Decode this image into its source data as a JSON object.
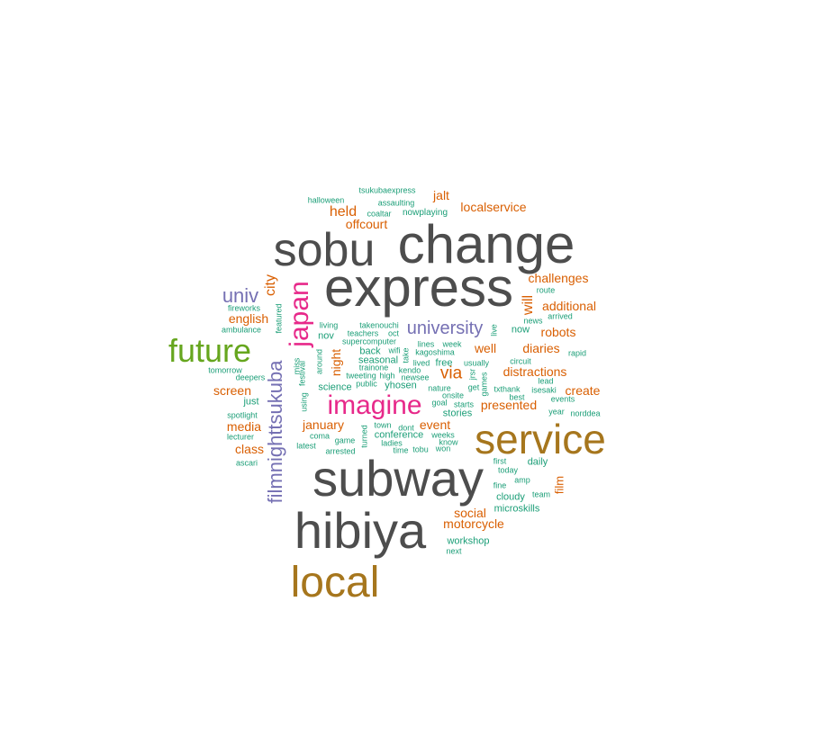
{
  "colors": {
    "c1": "#4d4d4d",
    "c2": "#a6761d",
    "c3": "#e7298a",
    "c4": "#66a61e",
    "c5": "#7570b3",
    "c6": "#d95f02",
    "c7": "#1b9e77"
  },
  "words": [
    {
      "text": "change",
      "rank": 1,
      "color": "c1"
    },
    {
      "text": "express",
      "rank": 1,
      "color": "c1"
    },
    {
      "text": "sobu",
      "rank": 1,
      "color": "c1"
    },
    {
      "text": "subway",
      "rank": 1,
      "color": "c1"
    },
    {
      "text": "hibiya",
      "rank": 1,
      "color": "c1"
    },
    {
      "text": "service",
      "rank": 2,
      "color": "c2"
    },
    {
      "text": "local",
      "rank": 2,
      "color": "c2"
    },
    {
      "text": "imagine",
      "rank": 3,
      "color": "c3"
    },
    {
      "text": "japan",
      "rank": 3,
      "color": "c3"
    },
    {
      "text": "future",
      "rank": 3,
      "color": "c4"
    },
    {
      "text": "filmnighttsukuba",
      "rank": 4,
      "color": "c5"
    },
    {
      "text": "univ",
      "rank": 4,
      "color": "c5"
    },
    {
      "text": "university",
      "rank": 4,
      "color": "c5"
    },
    {
      "text": "via",
      "rank": 5,
      "color": "c6"
    },
    {
      "text": "held",
      "rank": 5,
      "color": "c6"
    },
    {
      "text": "city",
      "rank": 5,
      "color": "c6"
    },
    {
      "text": "will",
      "rank": 5,
      "color": "c6"
    },
    {
      "text": "jalt",
      "rank": 6,
      "color": "c6"
    },
    {
      "text": "localservice",
      "rank": 6,
      "color": "c6"
    },
    {
      "text": "offcourt",
      "rank": 6,
      "color": "c6"
    },
    {
      "text": "challenges",
      "rank": 6,
      "color": "c6"
    },
    {
      "text": "additional",
      "rank": 6,
      "color": "c6"
    },
    {
      "text": "english",
      "rank": 6,
      "color": "c6"
    },
    {
      "text": "robots",
      "rank": 6,
      "color": "c6"
    },
    {
      "text": "well",
      "rank": 6,
      "color": "c6"
    },
    {
      "text": "diaries",
      "rank": 6,
      "color": "c6"
    },
    {
      "text": "distractions",
      "rank": 6,
      "color": "c6"
    },
    {
      "text": "create",
      "rank": 6,
      "color": "c6"
    },
    {
      "text": "screen",
      "rank": 6,
      "color": "c6"
    },
    {
      "text": "media",
      "rank": 6,
      "color": "c6"
    },
    {
      "text": "january",
      "rank": 6,
      "color": "c6"
    },
    {
      "text": "event",
      "rank": 6,
      "color": "c6"
    },
    {
      "text": "presented",
      "rank": 6,
      "color": "c6"
    },
    {
      "text": "class",
      "rank": 6,
      "color": "c6"
    },
    {
      "text": "social",
      "rank": 6,
      "color": "c6"
    },
    {
      "text": "motorcycle",
      "rank": 6,
      "color": "c6"
    },
    {
      "text": "night",
      "rank": 6,
      "color": "c6"
    },
    {
      "text": "film",
      "rank": 6,
      "color": "c6"
    },
    {
      "text": "tsukubaexpress",
      "rank": 8,
      "color": "c7"
    },
    {
      "text": "halloween",
      "rank": 8,
      "color": "c7"
    },
    {
      "text": "assaulting",
      "rank": 8,
      "color": "c7"
    },
    {
      "text": "coaltar",
      "rank": 8,
      "color": "c7"
    },
    {
      "text": "nowplaying",
      "rank": 7,
      "color": "c7"
    },
    {
      "text": "route",
      "rank": 8,
      "color": "c7"
    },
    {
      "text": "fireworks",
      "rank": 8,
      "color": "c7"
    },
    {
      "text": "featured",
      "rank": 8,
      "color": "c7"
    },
    {
      "text": "ambulance",
      "rank": 8,
      "color": "c7"
    },
    {
      "text": "living",
      "rank": 8,
      "color": "c7"
    },
    {
      "text": "takenouchi",
      "rank": 8,
      "color": "c7"
    },
    {
      "text": "news",
      "rank": 8,
      "color": "c7"
    },
    {
      "text": "arrived",
      "rank": 8,
      "color": "c7"
    },
    {
      "text": "live",
      "rank": 8,
      "color": "c7"
    },
    {
      "text": "now",
      "rank": 7,
      "color": "c7"
    },
    {
      "text": "nov",
      "rank": 7,
      "color": "c7"
    },
    {
      "text": "teachers",
      "rank": 8,
      "color": "c7"
    },
    {
      "text": "oct",
      "rank": 8,
      "color": "c7"
    },
    {
      "text": "supercomputer",
      "rank": 8,
      "color": "c7"
    },
    {
      "text": "lines",
      "rank": 8,
      "color": "c7"
    },
    {
      "text": "week",
      "rank": 8,
      "color": "c7"
    },
    {
      "text": "back",
      "rank": 7,
      "color": "c7"
    },
    {
      "text": "wifi",
      "rank": 8,
      "color": "c7"
    },
    {
      "text": "kagoshima",
      "rank": 8,
      "color": "c7"
    },
    {
      "text": "rapid",
      "rank": 8,
      "color": "c7"
    },
    {
      "text": "miss",
      "rank": 8,
      "color": "c7"
    },
    {
      "text": "around",
      "rank": 8,
      "color": "c7"
    },
    {
      "text": "seasonal",
      "rank": 7,
      "color": "c7"
    },
    {
      "text": "take",
      "rank": 8,
      "color": "c7"
    },
    {
      "text": "lived",
      "rank": 8,
      "color": "c7"
    },
    {
      "text": "free",
      "rank": 7,
      "color": "c7"
    },
    {
      "text": "usually",
      "rank": 8,
      "color": "c7"
    },
    {
      "text": "circuit",
      "rank": 8,
      "color": "c7"
    },
    {
      "text": "tomorrow",
      "rank": 8,
      "color": "c7"
    },
    {
      "text": "deepers",
      "rank": 8,
      "color": "c7"
    },
    {
      "text": "trainone",
      "rank": 8,
      "color": "c7"
    },
    {
      "text": "kendo",
      "rank": 8,
      "color": "c7"
    },
    {
      "text": "tweeting",
      "rank": 8,
      "color": "c7"
    },
    {
      "text": "high",
      "rank": 8,
      "color": "c7"
    },
    {
      "text": "newsee",
      "rank": 8,
      "color": "c7"
    },
    {
      "text": "jrsr",
      "rank": 8,
      "color": "c7"
    },
    {
      "text": "lead",
      "rank": 8,
      "color": "c7"
    },
    {
      "text": "festival",
      "rank": 8,
      "color": "c7"
    },
    {
      "text": "public",
      "rank": 8,
      "color": "c7"
    },
    {
      "text": "games",
      "rank": 8,
      "color": "c7"
    },
    {
      "text": "isesaki",
      "rank": 8,
      "color": "c7"
    },
    {
      "text": "science",
      "rank": 7,
      "color": "c7"
    },
    {
      "text": "yhosen",
      "rank": 7,
      "color": "c7"
    },
    {
      "text": "nature",
      "rank": 8,
      "color": "c7"
    },
    {
      "text": "get",
      "rank": 8,
      "color": "c7"
    },
    {
      "text": "txthank",
      "rank": 8,
      "color": "c7"
    },
    {
      "text": "just",
      "rank": 7,
      "color": "c7"
    },
    {
      "text": "using",
      "rank": 8,
      "color": "c7"
    },
    {
      "text": "onsite",
      "rank": 8,
      "color": "c7"
    },
    {
      "text": "best",
      "rank": 8,
      "color": "c7"
    },
    {
      "text": "events",
      "rank": 8,
      "color": "c7"
    },
    {
      "text": "goal",
      "rank": 8,
      "color": "c7"
    },
    {
      "text": "starts",
      "rank": 8,
      "color": "c7"
    },
    {
      "text": "spotlight",
      "rank": 8,
      "color": "c7"
    },
    {
      "text": "stories",
      "rank": 7,
      "color": "c7"
    },
    {
      "text": "year",
      "rank": 8,
      "color": "c7"
    },
    {
      "text": "norddea",
      "rank": 8,
      "color": "c7"
    },
    {
      "text": "town",
      "rank": 8,
      "color": "c7"
    },
    {
      "text": "dont",
      "rank": 8,
      "color": "c7"
    },
    {
      "text": "coma",
      "rank": 8,
      "color": "c7"
    },
    {
      "text": "conference",
      "rank": 7,
      "color": "c7"
    },
    {
      "text": "weeks",
      "rank": 8,
      "color": "c7"
    },
    {
      "text": "lecturer",
      "rank": 8,
      "color": "c7"
    },
    {
      "text": "game",
      "rank": 8,
      "color": "c7"
    },
    {
      "text": "ladies",
      "rank": 8,
      "color": "c7"
    },
    {
      "text": "know",
      "rank": 8,
      "color": "c7"
    },
    {
      "text": "turned",
      "rank": 8,
      "color": "c7"
    },
    {
      "text": "latest",
      "rank": 8,
      "color": "c7"
    },
    {
      "text": "arrested",
      "rank": 8,
      "color": "c7"
    },
    {
      "text": "time",
      "rank": 8,
      "color": "c7"
    },
    {
      "text": "tobu",
      "rank": 8,
      "color": "c7"
    },
    {
      "text": "won",
      "rank": 8,
      "color": "c7"
    },
    {
      "text": "ascari",
      "rank": 8,
      "color": "c7"
    },
    {
      "text": "first",
      "rank": 8,
      "color": "c7"
    },
    {
      "text": "daily",
      "rank": 7,
      "color": "c7"
    },
    {
      "text": "today",
      "rank": 8,
      "color": "c7"
    },
    {
      "text": "amp",
      "rank": 8,
      "color": "c7"
    },
    {
      "text": "fine",
      "rank": 8,
      "color": "c7"
    },
    {
      "text": "team",
      "rank": 8,
      "color": "c7"
    },
    {
      "text": "cloudy",
      "rank": 7,
      "color": "c7"
    },
    {
      "text": "microskills",
      "rank": 7,
      "color": "c7"
    },
    {
      "text": "workshop",
      "rank": 7,
      "color": "c7"
    },
    {
      "text": "next",
      "rank": 8,
      "color": "c7"
    }
  ]
}
